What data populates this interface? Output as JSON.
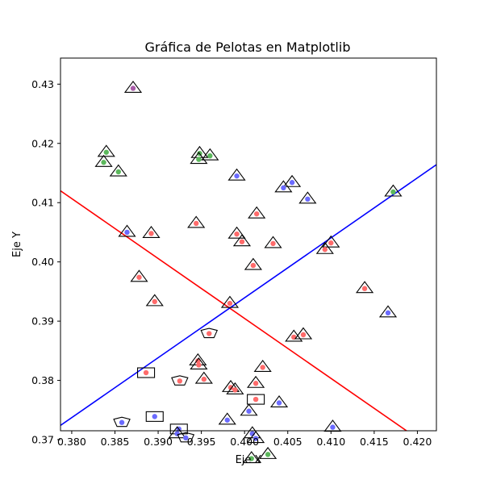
{
  "chart_data": {
    "type": "scatter",
    "title": "Gráfica de Pelotas en Matplotlib",
    "xlabel": "Eje X",
    "ylabel": "Eje Y",
    "xlim": [
      0.3787,
      0.4222
    ],
    "ylim": [
      0.3715,
      0.4344
    ],
    "xticks": [
      0.38,
      0.385,
      0.39,
      0.395,
      0.4,
      0.405,
      0.41,
      0.415,
      0.42
    ],
    "xtick_labels": [
      "0.380",
      "0.385",
      "0.390",
      "0.395",
      "0.400",
      "0.405",
      "0.410",
      "0.415",
      "0.420"
    ],
    "yticks": [
      0.37,
      0.38,
      0.39,
      0.4,
      0.41,
      0.42,
      0.43
    ],
    "ytick_labels": [
      "0.37",
      "0.38",
      "0.39",
      "0.40",
      "0.41",
      "0.42",
      "0.43"
    ],
    "grid": false,
    "colors": {
      "red": "#ff6b6b",
      "green": "#5cb85c",
      "blue": "#6b6bff",
      "purple": "#a85ca8",
      "red_line": "#ff0000",
      "blue_line": "#0000ff",
      "marker_edge": "#000000"
    },
    "lines": [
      {
        "color": "red",
        "x": [
          0.3787,
          0.4222
        ],
        "y": [
          0.412,
          0.368
        ]
      },
      {
        "color": "blue",
        "x": [
          0.3787,
          0.4222
        ],
        "y": [
          0.3724,
          0.4164
        ]
      }
    ],
    "points": [
      {
        "x": 0.3871,
        "y": 0.4293,
        "color": "purple",
        "marker": "triangle"
      },
      {
        "x": 0.384,
        "y": 0.4185,
        "color": "green",
        "marker": "triangle"
      },
      {
        "x": 0.3837,
        "y": 0.4168,
        "color": "green",
        "marker": "triangle"
      },
      {
        "x": 0.3854,
        "y": 0.4152,
        "color": "green",
        "marker": "triangle"
      },
      {
        "x": 0.3948,
        "y": 0.4183,
        "color": "green",
        "marker": "triangle"
      },
      {
        "x": 0.3947,
        "y": 0.4173,
        "color": "green",
        "marker": "triangle"
      },
      {
        "x": 0.396,
        "y": 0.4179,
        "color": "green",
        "marker": "triangle"
      },
      {
        "x": 0.3991,
        "y": 0.4145,
        "color": "blue",
        "marker": "triangle"
      },
      {
        "x": 0.4055,
        "y": 0.4134,
        "color": "blue",
        "marker": "triangle"
      },
      {
        "x": 0.4045,
        "y": 0.4125,
        "color": "blue",
        "marker": "triangle"
      },
      {
        "x": 0.4073,
        "y": 0.4106,
        "color": "blue",
        "marker": "triangle"
      },
      {
        "x": 0.4172,
        "y": 0.4118,
        "color": "green",
        "marker": "triangle"
      },
      {
        "x": 0.4014,
        "y": 0.4081,
        "color": "red",
        "marker": "triangle"
      },
      {
        "x": 0.3944,
        "y": 0.4065,
        "color": "red",
        "marker": "triangle"
      },
      {
        "x": 0.3864,
        "y": 0.405,
        "color": "blue",
        "marker": "triangle"
      },
      {
        "x": 0.3892,
        "y": 0.4048,
        "color": "red",
        "marker": "triangle"
      },
      {
        "x": 0.3991,
        "y": 0.4047,
        "color": "red",
        "marker": "triangle"
      },
      {
        "x": 0.3997,
        "y": 0.4034,
        "color": "red",
        "marker": "triangle"
      },
      {
        "x": 0.4033,
        "y": 0.4031,
        "color": "red",
        "marker": "triangle"
      },
      {
        "x": 0.41,
        "y": 0.4032,
        "color": "red",
        "marker": "triangle"
      },
      {
        "x": 0.4093,
        "y": 0.4021,
        "color": "red",
        "marker": "triangle"
      },
      {
        "x": 0.401,
        "y": 0.3994,
        "color": "red",
        "marker": "triangle"
      },
      {
        "x": 0.3878,
        "y": 0.3974,
        "color": "red",
        "marker": "triangle"
      },
      {
        "x": 0.4139,
        "y": 0.3955,
        "color": "red",
        "marker": "triangle"
      },
      {
        "x": 0.3896,
        "y": 0.3933,
        "color": "red",
        "marker": "triangle"
      },
      {
        "x": 0.3983,
        "y": 0.393,
        "color": "red",
        "marker": "triangle"
      },
      {
        "x": 0.4166,
        "y": 0.3914,
        "color": "blue",
        "marker": "triangle"
      },
      {
        "x": 0.3959,
        "y": 0.3879,
        "color": "red",
        "marker": "pentagon"
      },
      {
        "x": 0.4057,
        "y": 0.3873,
        "color": "red",
        "marker": "triangle"
      },
      {
        "x": 0.4068,
        "y": 0.3877,
        "color": "red",
        "marker": "triangle"
      },
      {
        "x": 0.3946,
        "y": 0.3833,
        "color": "red",
        "marker": "triangle"
      },
      {
        "x": 0.3947,
        "y": 0.3826,
        "color": "red",
        "marker": "triangle"
      },
      {
        "x": 0.4021,
        "y": 0.3822,
        "color": "red",
        "marker": "triangle"
      },
      {
        "x": 0.3886,
        "y": 0.3813,
        "color": "red",
        "marker": "square"
      },
      {
        "x": 0.3953,
        "y": 0.3802,
        "color": "red",
        "marker": "triangle"
      },
      {
        "x": 0.3925,
        "y": 0.3799,
        "color": "red",
        "marker": "pentagon"
      },
      {
        "x": 0.4013,
        "y": 0.3795,
        "color": "red",
        "marker": "triangle"
      },
      {
        "x": 0.3984,
        "y": 0.3788,
        "color": "red",
        "marker": "triangle"
      },
      {
        "x": 0.3989,
        "y": 0.3784,
        "color": "red",
        "marker": "triangle"
      },
      {
        "x": 0.4013,
        "y": 0.3768,
        "color": "red",
        "marker": "square"
      },
      {
        "x": 0.404,
        "y": 0.3762,
        "color": "blue",
        "marker": "triangle"
      },
      {
        "x": 0.4005,
        "y": 0.3748,
        "color": "blue",
        "marker": "triangle"
      },
      {
        "x": 0.3896,
        "y": 0.3739,
        "color": "blue",
        "marker": "square"
      },
      {
        "x": 0.398,
        "y": 0.3733,
        "color": "blue",
        "marker": "triangle"
      },
      {
        "x": 0.3858,
        "y": 0.3729,
        "color": "blue",
        "marker": "pentagon"
      },
      {
        "x": 0.4102,
        "y": 0.3721,
        "color": "blue",
        "marker": "triangle"
      },
      {
        "x": 0.3924,
        "y": 0.3718,
        "color": "blue",
        "marker": "square"
      },
      {
        "x": 0.3922,
        "y": 0.371,
        "color": "blue",
        "marker": "triangle"
      },
      {
        "x": 0.4009,
        "y": 0.371,
        "color": "blue",
        "marker": "triangle"
      },
      {
        "x": 0.3932,
        "y": 0.3703,
        "color": "blue",
        "marker": "pentagon"
      },
      {
        "x": 0.4013,
        "y": 0.3702,
        "color": "blue",
        "marker": "triangle"
      },
      {
        "x": 0.4027,
        "y": 0.3675,
        "color": "green",
        "marker": "triangle"
      },
      {
        "x": 0.4008,
        "y": 0.3668,
        "color": "green",
        "marker": "triangle"
      }
    ]
  }
}
